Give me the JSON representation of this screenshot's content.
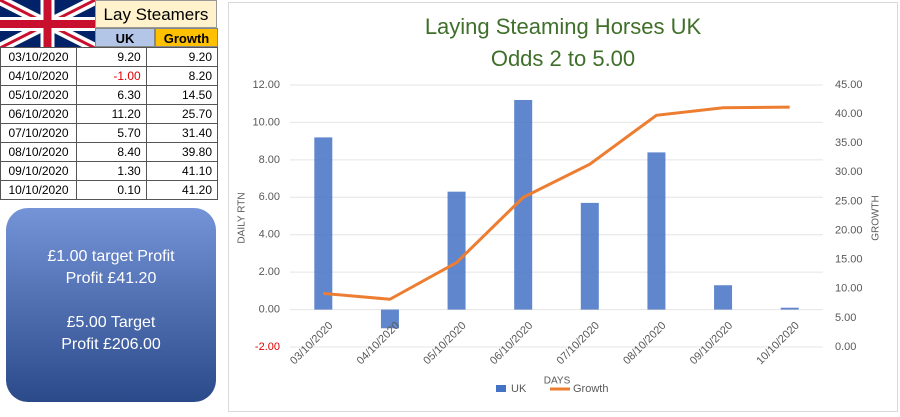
{
  "table": {
    "title": "Lay Steamers",
    "columns": [
      "UK",
      "Growth"
    ],
    "rows": [
      [
        "03/10/2020",
        "9.20",
        "9.20"
      ],
      [
        "04/10/2020",
        "-1.00",
        "8.20"
      ],
      [
        "05/10/2020",
        "6.30",
        "14.50"
      ],
      [
        "06/10/2020",
        "11.20",
        "25.70"
      ],
      [
        "07/10/2020",
        "5.70",
        "31.40"
      ],
      [
        "08/10/2020",
        "8.40",
        "39.80"
      ],
      [
        "09/10/2020",
        "1.30",
        "41.10"
      ],
      [
        "10/10/2020",
        "0.10",
        "41.20"
      ]
    ]
  },
  "callout": [
    "£1.00 target Profit",
    "Profit £41.20",
    "£5.00 Target",
    "Profit £206.00"
  ],
  "chart_data": {
    "type": "bar",
    "title": "Laying Steaming Horses UK",
    "subtitle": "Odds 2 to 5.00",
    "x_label": "DAYS",
    "y_label": "DAILY RTN",
    "y2_label": "GROWTH",
    "categories": [
      "03/10/2020",
      "04/10/2020",
      "05/10/2020",
      "06/10/2020",
      "07/10/2020",
      "08/10/2020",
      "09/10/2020",
      "10/10/2020"
    ],
    "series": [
      {
        "name": "UK",
        "type": "bar",
        "color": "#4472c4",
        "values": [
          9.2,
          -1.0,
          6.3,
          11.2,
          5.7,
          8.4,
          1.3,
          0.1
        ]
      },
      {
        "name": "Growth",
        "type": "line",
        "axis": "y2",
        "color": "#ed7d31",
        "values": [
          9.2,
          8.2,
          14.5,
          25.7,
          31.4,
          39.8,
          41.1,
          41.2
        ]
      }
    ],
    "ylim": [
      -2,
      12
    ],
    "yticks": [
      {
        "value": -2,
        "label": "-2.00"
      },
      {
        "value": 0,
        "label": "0.00"
      },
      {
        "value": 2,
        "label": "2.00"
      },
      {
        "value": 4,
        "label": "4.00"
      },
      {
        "value": 6,
        "label": "6.00"
      },
      {
        "value": 8,
        "label": "8.00"
      },
      {
        "value": 10,
        "label": "10.00"
      },
      {
        "value": 12,
        "label": "12.00"
      }
    ],
    "y2lim": [
      0,
      45
    ],
    "y2ticks": [
      {
        "value": 0,
        "label": "0.00"
      },
      {
        "value": 5,
        "label": "5.00"
      },
      {
        "value": 10,
        "label": "10.00"
      },
      {
        "value": 15,
        "label": "15.00"
      },
      {
        "value": 20,
        "label": "20.00"
      },
      {
        "value": 25,
        "label": "25.00"
      },
      {
        "value": 30,
        "label": "30.00"
      },
      {
        "value": 35,
        "label": "35.00"
      },
      {
        "value": 40,
        "label": "40.00"
      },
      {
        "value": 45,
        "label": "45.00"
      }
    ],
    "grid": true,
    "legend": "bottom"
  }
}
